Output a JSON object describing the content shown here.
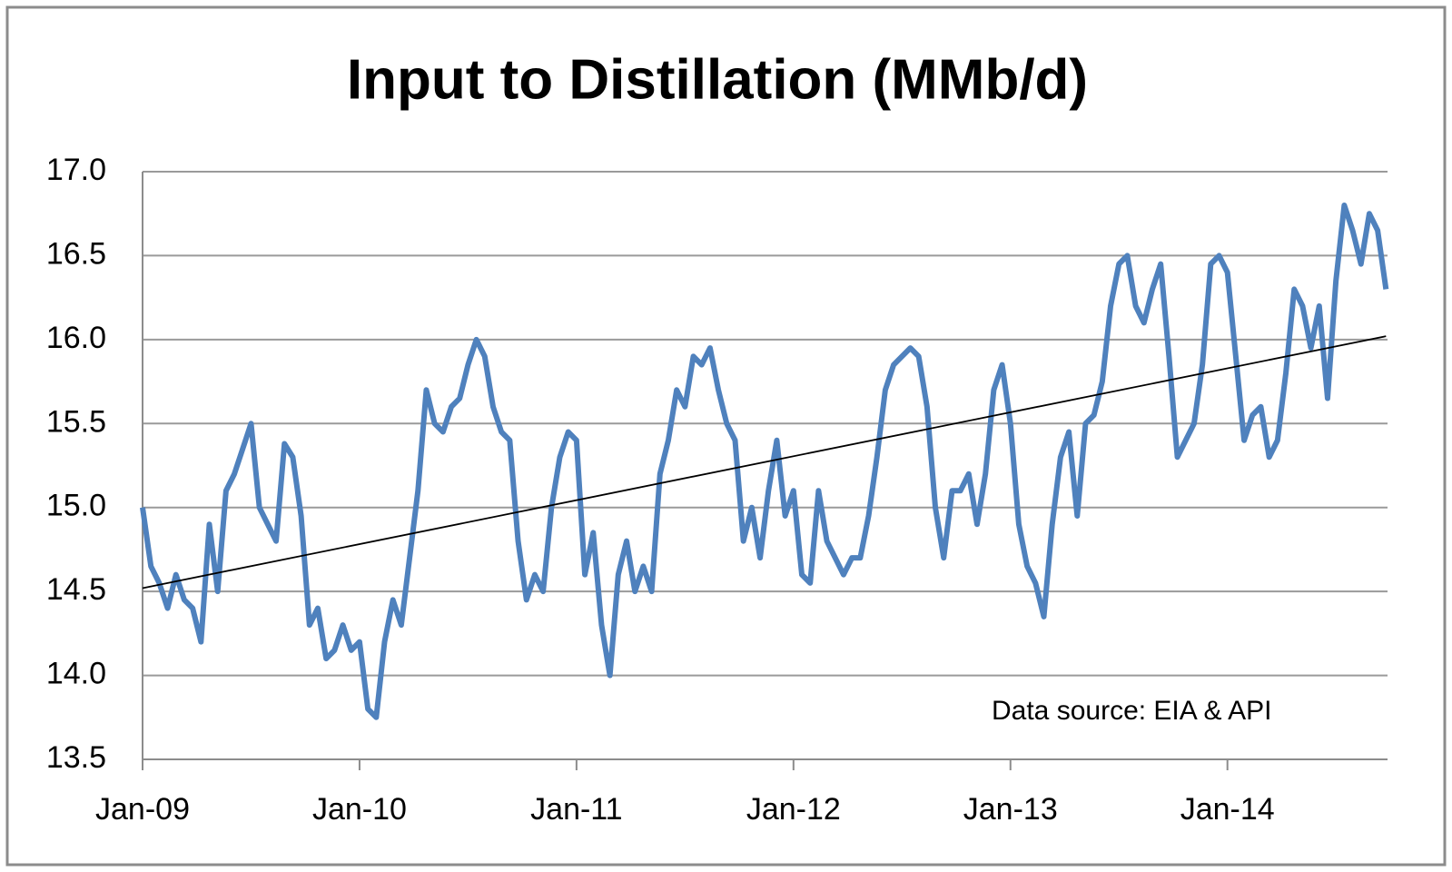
{
  "chart_data": {
    "type": "line",
    "title": "Input to Distillation (MMb/d)",
    "annotation": "Data source: EIA & API",
    "color": "#4f81bd",
    "categories": [
      "Jan-09",
      null,
      null,
      null,
      null,
      null,
      null,
      null,
      null,
      null,
      null,
      null,
      null,
      null,
      null,
      null,
      null,
      null,
      null,
      null,
      null,
      null,
      null,
      null,
      null,
      null,
      "Jan-10",
      null,
      null,
      null,
      null,
      null,
      null,
      null,
      null,
      null,
      null,
      null,
      null,
      null,
      null,
      null,
      null,
      null,
      null,
      null,
      null,
      null,
      null,
      null,
      null,
      null,
      "Jan-11",
      null,
      null,
      null,
      null,
      null,
      null,
      null,
      null,
      null,
      null,
      null,
      null,
      null,
      null,
      null,
      null,
      null,
      null,
      null,
      null,
      null,
      null,
      null,
      null,
      null,
      "Jan-12",
      null,
      null,
      null,
      null,
      null,
      null,
      null,
      null,
      null,
      null,
      null,
      null,
      null,
      null,
      null,
      null,
      null,
      null,
      null,
      null,
      null,
      null,
      null,
      null,
      null,
      "Jan-13",
      null,
      null,
      null,
      null,
      null,
      null,
      null,
      null,
      null,
      null,
      null,
      null,
      null,
      null,
      null,
      null,
      null,
      null,
      null,
      null,
      null,
      null,
      null,
      null,
      null,
      "Jan-14",
      null,
      null,
      null,
      null,
      null,
      null,
      null,
      null,
      null,
      null,
      null,
      null,
      null,
      null,
      null,
      null,
      null,
      null,
      null
    ],
    "values": [
      15.0,
      14.65,
      14.55,
      14.4,
      14.6,
      14.45,
      14.4,
      14.2,
      14.9,
      14.5,
      15.1,
      15.2,
      15.35,
      15.5,
      15.0,
      14.9,
      14.8,
      15.38,
      15.3,
      14.95,
      14.3,
      14.4,
      14.1,
      14.15,
      14.3,
      14.15,
      14.2,
      13.8,
      13.75,
      14.2,
      14.45,
      14.3,
      14.7,
      15.1,
      15.7,
      15.5,
      15.45,
      15.6,
      15.65,
      15.85,
      16.0,
      15.9,
      15.6,
      15.45,
      15.4,
      14.8,
      14.45,
      14.6,
      14.5,
      15.0,
      15.3,
      15.45,
      15.4,
      14.6,
      14.85,
      14.3,
      14.0,
      14.6,
      14.8,
      14.5,
      14.65,
      14.5,
      15.2,
      15.4,
      15.7,
      15.6,
      15.9,
      15.85,
      15.95,
      15.7,
      15.5,
      15.4,
      14.8,
      15.0,
      14.7,
      15.1,
      15.4,
      14.95,
      15.1,
      14.6,
      14.55,
      15.1,
      14.8,
      14.7,
      14.6,
      14.7,
      14.7,
      14.95,
      15.3,
      15.7,
      15.85,
      15.9,
      15.95,
      15.9,
      15.6,
      15.0,
      14.7,
      15.1,
      15.1,
      15.2,
      14.9,
      15.2,
      15.7,
      15.85,
      15.5,
      14.9,
      14.65,
      14.55,
      14.35,
      14.9,
      15.3,
      15.45,
      14.95,
      15.5,
      15.55,
      15.75,
      16.2,
      16.45,
      16.5,
      16.2,
      16.1,
      16.3,
      16.45,
      15.9,
      15.3,
      15.4,
      15.5,
      15.85,
      16.45,
      16.5,
      16.4,
      15.9,
      15.4,
      15.55,
      15.6,
      15.3,
      15.4,
      15.8,
      16.3,
      16.2,
      15.95,
      16.2,
      15.65,
      16.35,
      16.8,
      16.65,
      16.45,
      16.75,
      16.65,
      16.3
    ],
    "trendline": {
      "values": [
        14.52,
        16.02
      ],
      "color": "#000000"
    },
    "ylim": [
      13.5,
      17.0
    ],
    "yticks": [
      13.5,
      {
        "value": 14,
        "label": "14.0"
      },
      14.5,
      {
        "value": 15,
        "label": "15.0"
      },
      15.5,
      {
        "value": 16,
        "label": "16.0"
      },
      16.5,
      {
        "value": 17,
        "label": "17.0"
      }
    ],
    "grid": true
  }
}
